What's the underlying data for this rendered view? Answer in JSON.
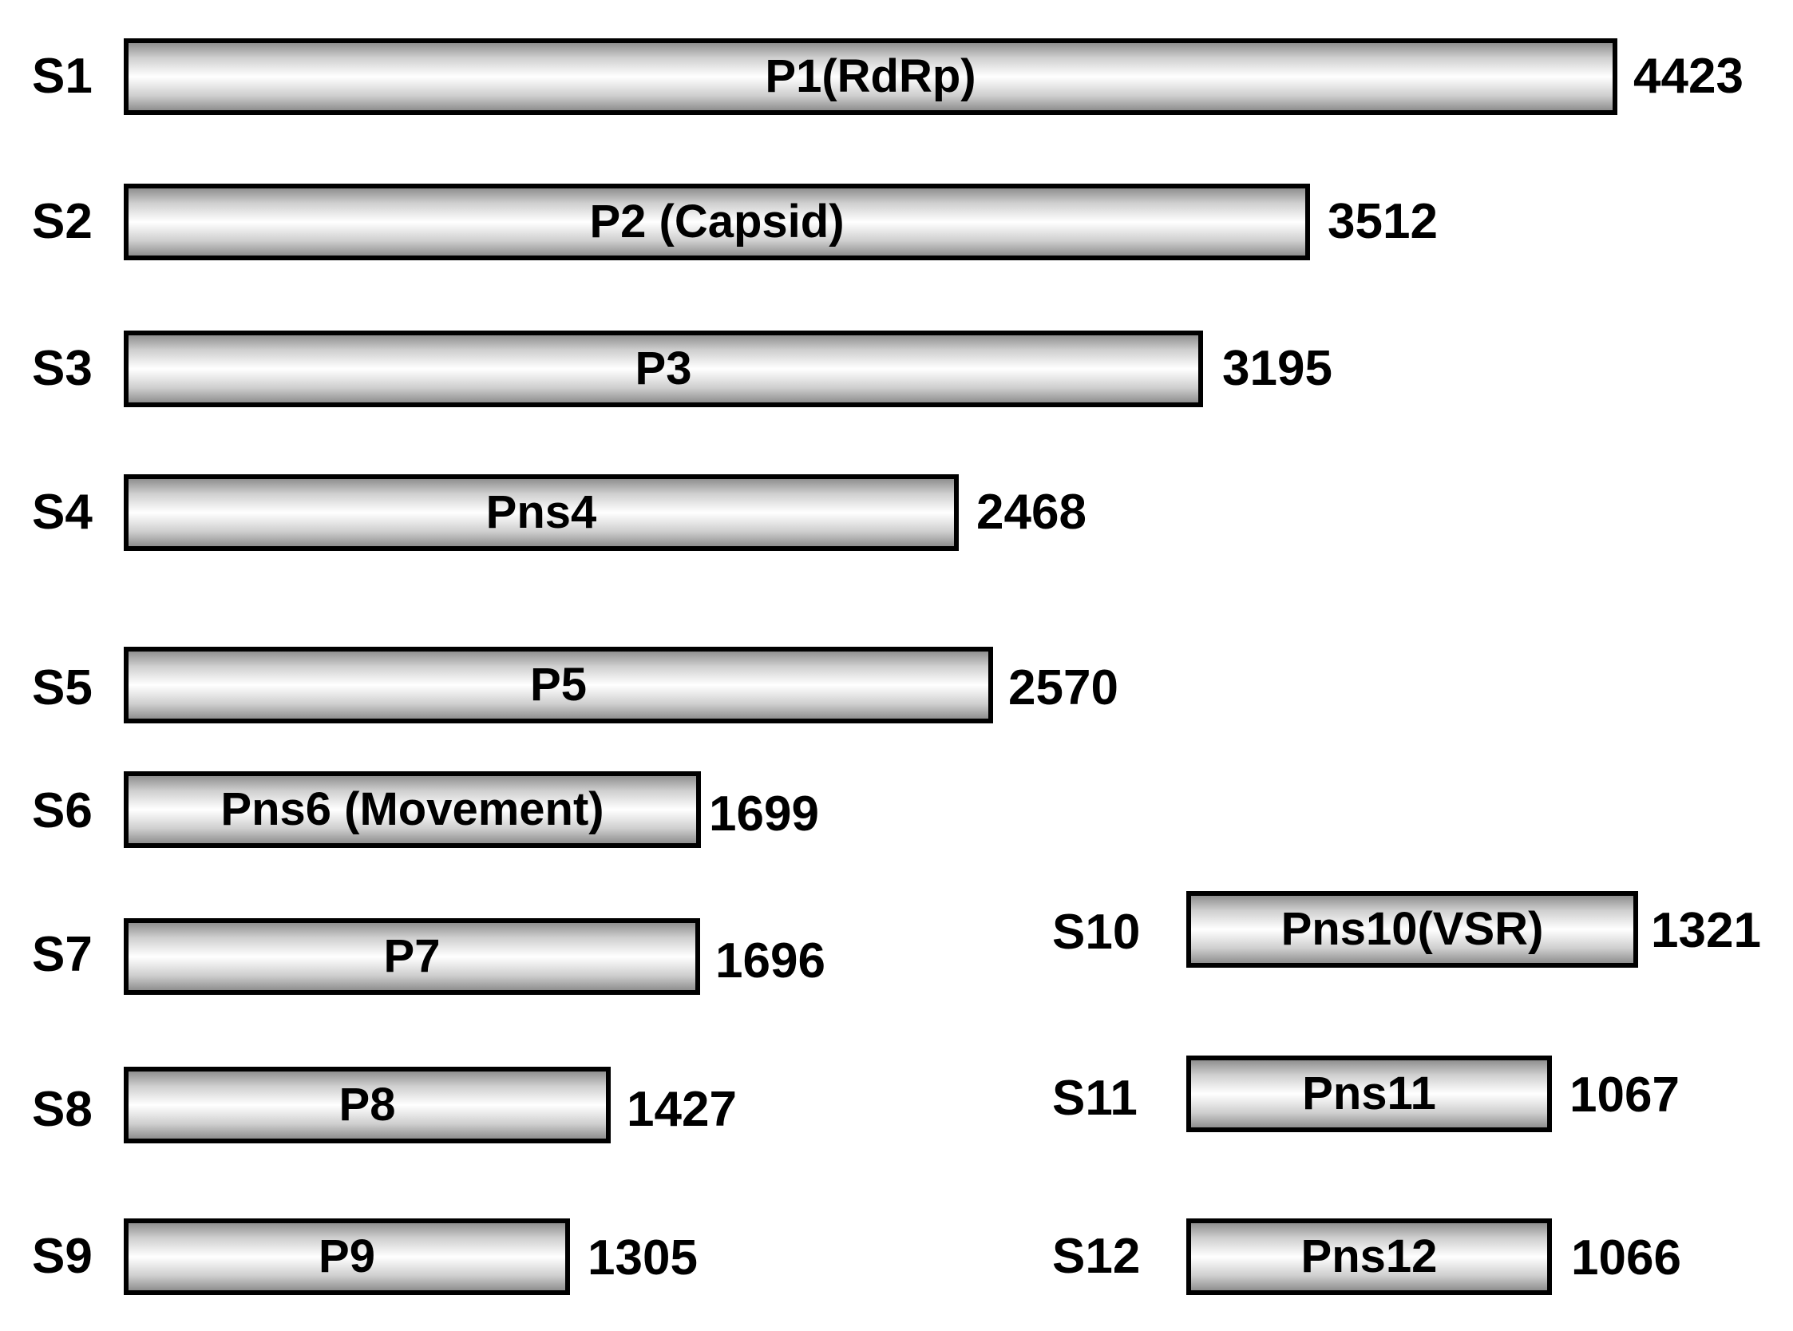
{
  "segments": [
    {
      "segment": "S1",
      "protein": "P1(RdRp)",
      "length": "4423"
    },
    {
      "segment": "S2",
      "protein": "P2 (Capsid)",
      "length": "3512"
    },
    {
      "segment": "S3",
      "protein": "P3",
      "length": "3195"
    },
    {
      "segment": "S4",
      "protein": "Pns4",
      "length": "2468"
    },
    {
      "segment": "S5",
      "protein": "P5",
      "length": "2570"
    },
    {
      "segment": "S6",
      "protein": "Pns6 (Movement)",
      "length": "1699"
    },
    {
      "segment": "S7",
      "protein": "P7",
      "length": "1696"
    },
    {
      "segment": "S8",
      "protein": "P8",
      "length": "1427"
    },
    {
      "segment": "S9",
      "protein": "P9",
      "length": "1305"
    },
    {
      "segment": "S10",
      "protein": "Pns10(VSR)",
      "length": "1321"
    },
    {
      "segment": "S11",
      "protein": "Pns11",
      "length": "1067"
    },
    {
      "segment": "S12",
      "protein": "Pns12",
      "length": "1066"
    }
  ],
  "colors": {
    "bar_outline": "#000000",
    "bar_gradient_edge": "#8f8f8f",
    "bar_gradient_center": "#ffffff",
    "text": "#000000"
  }
}
